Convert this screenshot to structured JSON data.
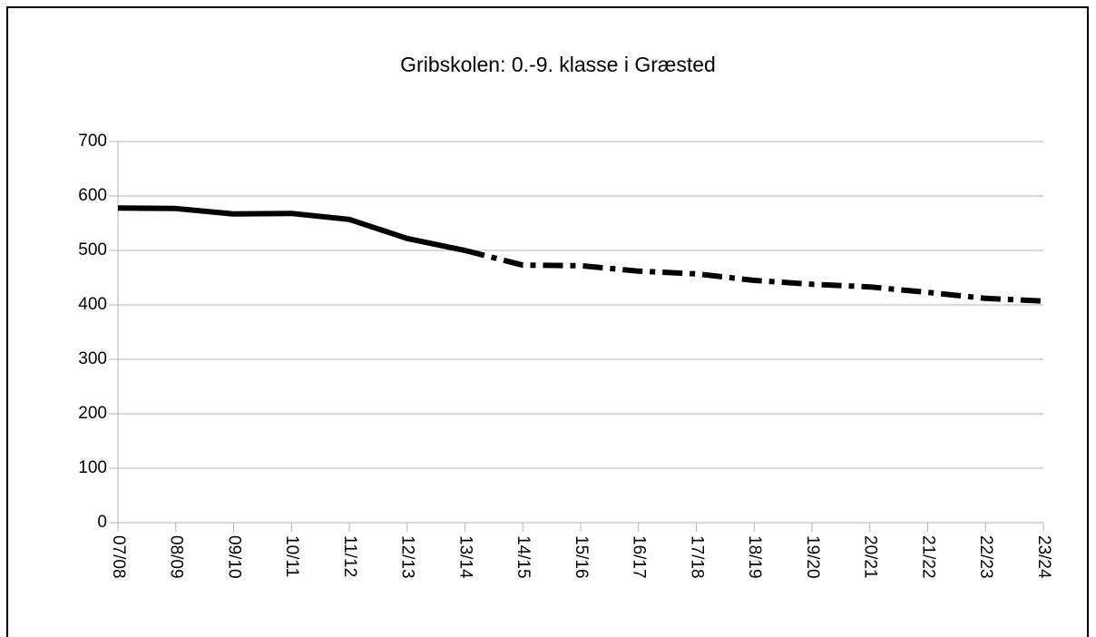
{
  "chart_data": {
    "type": "line",
    "title": "Gribskolen: 0.-9. klasse i Græsted",
    "categories": [
      "07/08",
      "08/09",
      "09/10",
      "10/11",
      "11/12",
      "12/13",
      "13/14",
      "14/15",
      "15/16",
      "16/17",
      "17/18",
      "18/19",
      "19/20",
      "20/21",
      "21/22",
      "22/23",
      "23/24"
    ],
    "series": [
      {
        "color": "#000000",
        "style": "solid",
        "values": [
          578,
          577,
          567,
          568,
          557,
          522,
          500,
          null,
          null,
          null,
          null,
          null,
          null,
          null,
          null,
          null,
          null
        ]
      },
      {
        "color": "#000000",
        "style": "dashdot",
        "values": [
          null,
          null,
          null,
          null,
          null,
          null,
          500,
          473,
          472,
          462,
          457,
          445,
          438,
          433,
          423,
          412,
          407
        ]
      }
    ],
    "ylim": [
      0,
      700
    ],
    "yticks": [
      0,
      100,
      200,
      300,
      400,
      500,
      600,
      700
    ],
    "grid": true
  }
}
